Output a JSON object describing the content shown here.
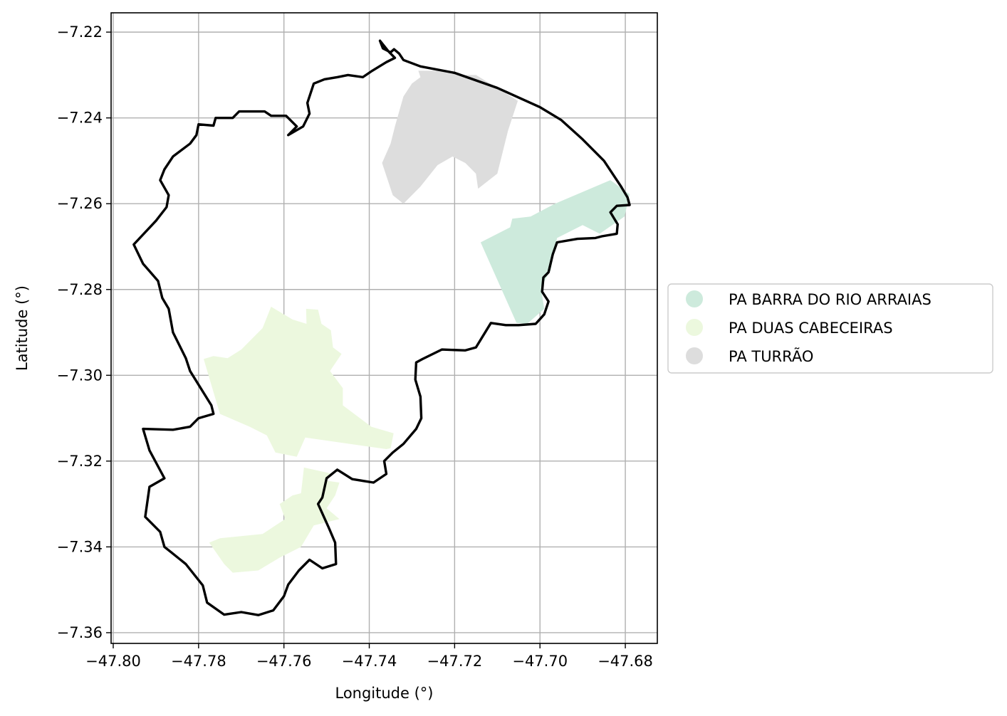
{
  "chart_data": {
    "type": "map",
    "xlabel": "Longitude (°)",
    "ylabel": "Latitude (°)",
    "xlim": [
      -47.8005,
      -47.6725
    ],
    "ylim": [
      -7.3625,
      -7.2155
    ],
    "grid": true,
    "legend_position": "right",
    "x_ticks": [
      {
        "value": -47.8,
        "label": "−47.80"
      },
      {
        "value": -47.78,
        "label": "−47.78"
      },
      {
        "value": -47.76,
        "label": "−47.76"
      },
      {
        "value": -47.74,
        "label": "−47.74"
      },
      {
        "value": -47.72,
        "label": "−47.72"
      },
      {
        "value": -47.7,
        "label": "−47.70"
      },
      {
        "value": -47.68,
        "label": "−47.68"
      }
    ],
    "y_ticks": [
      {
        "value": -7.22,
        "label": "−7.22"
      },
      {
        "value": -7.24,
        "label": "−7.24"
      },
      {
        "value": -7.26,
        "label": "−7.26"
      },
      {
        "value": -7.28,
        "label": "−7.28"
      },
      {
        "value": -7.3,
        "label": "−7.30"
      },
      {
        "value": -7.32,
        "label": "−7.32"
      },
      {
        "value": -7.34,
        "label": "−7.34"
      },
      {
        "value": -7.36,
        "label": "−7.36"
      }
    ],
    "series": [
      {
        "name": "PA BARRA DO RIO ARRAIAS",
        "color": "#cdeadc",
        "polygons": [
          [
            [
              -47.7139,
              -7.269
            ],
            [
              -47.707,
              -7.2655
            ],
            [
              -47.7065,
              -7.2635
            ],
            [
              -47.7022,
              -7.263
            ],
            [
              -47.6965,
              -7.26
            ],
            [
              -47.6835,
              -7.2545
            ],
            [
              -47.679,
              -7.2578
            ],
            [
              -47.6802,
              -7.263
            ],
            [
              -47.686,
              -7.267
            ],
            [
              -47.69,
              -7.265
            ],
            [
              -47.696,
              -7.268
            ],
            [
              -47.6975,
              -7.2755
            ],
            [
              -47.6998,
              -7.2795
            ],
            [
              -47.699,
              -7.2845
            ],
            [
              -47.703,
              -7.288
            ],
            [
              -47.7055,
              -7.2878
            ]
          ]
        ]
      },
      {
        "name": "PA DUAS CABECEIRAS",
        "color": "#ecf8de",
        "polygons": [
          [
            [
              -47.7788,
              -7.2962
            ],
            [
              -47.7765,
              -7.2955
            ],
            [
              -47.7732,
              -7.296
            ],
            [
              -47.77,
              -7.294
            ],
            [
              -47.765,
              -7.289
            ],
            [
              -47.763,
              -7.284
            ],
            [
              -47.758,
              -7.287
            ],
            [
              -47.7547,
              -7.288
            ],
            [
              -47.7548,
              -7.2845
            ],
            [
              -47.752,
              -7.2847
            ],
            [
              -47.7512,
              -7.288
            ],
            [
              -47.749,
              -7.2895
            ],
            [
              -47.7485,
              -7.2935
            ],
            [
              -47.7465,
              -7.295
            ],
            [
              -47.7492,
              -7.299
            ],
            [
              -47.7462,
              -7.303
            ],
            [
              -47.7462,
              -7.307
            ],
            [
              -47.7395,
              -7.312
            ],
            [
              -47.7343,
              -7.3135
            ],
            [
              -47.735,
              -7.317
            ],
            [
              -47.736,
              -7.3172
            ],
            [
              -47.755,
              -7.3145
            ],
            [
              -47.757,
              -7.319
            ],
            [
              -47.762,
              -7.318
            ],
            [
              -47.764,
              -7.314
            ],
            [
              -47.768,
              -7.312
            ],
            [
              -47.775,
              -7.309
            ]
          ],
          [
            [
              -47.775,
              -7.338
            ],
            [
              -47.765,
              -7.337
            ],
            [
              -47.7597,
              -7.3335
            ],
            [
              -47.761,
              -7.33
            ],
            [
              -47.758,
              -7.328
            ],
            [
              -47.756,
              -7.3275
            ],
            [
              -47.7553,
              -7.3215
            ],
            [
              -47.7485,
              -7.323
            ],
            [
              -47.7505,
              -7.3245
            ],
            [
              -47.747,
              -7.325
            ],
            [
              -47.748,
              -7.328
            ],
            [
              -47.75,
              -7.331
            ],
            [
              -47.747,
              -7.3335
            ],
            [
              -47.753,
              -7.335
            ],
            [
              -47.756,
              -7.34
            ],
            [
              -47.761,
              -7.3425
            ],
            [
              -47.766,
              -7.3455
            ],
            [
              -47.772,
              -7.346
            ],
            [
              -47.774,
              -7.344
            ],
            [
              -47.7775,
              -7.339
            ]
          ]
        ]
      },
      {
        "name": "PA TURRÃO",
        "color": "#dddddd",
        "polygons": [
          [
            [
              -47.7285,
              -7.229
            ],
            [
              -47.728,
              -7.2305
            ],
            [
              -47.73,
              -7.232
            ],
            [
              -47.732,
              -7.235
            ],
            [
              -47.734,
              -7.242
            ],
            [
              -47.735,
              -7.246
            ],
            [
              -47.737,
              -7.2505
            ],
            [
              -47.7345,
              -7.258
            ],
            [
              -47.732,
              -7.26
            ],
            [
              -47.73,
              -7.258
            ],
            [
              -47.728,
              -7.256
            ],
            [
              -47.724,
              -7.251
            ],
            [
              -47.7205,
              -7.249
            ],
            [
              -47.7175,
              -7.2505
            ],
            [
              -47.715,
              -7.253
            ],
            [
              -47.7145,
              -7.2565
            ],
            [
              -47.71,
              -7.253
            ],
            [
              -47.7075,
              -7.243
            ],
            [
              -47.7052,
              -7.236
            ],
            [
              -47.71,
              -7.233
            ],
            [
              -47.715,
              -7.23
            ],
            [
              -47.719,
              -7.23
            ],
            [
              -47.724,
              -7.229
            ]
          ]
        ]
      }
    ],
    "outline": {
      "color": "#000000",
      "points": [
        [
          -47.7375,
          -7.222
        ],
        [
          -47.7368,
          -7.2238
        ],
        [
          -47.735,
          -7.2247
        ],
        [
          -47.7342,
          -7.224
        ],
        [
          -47.733,
          -7.225
        ],
        [
          -47.732,
          -7.2265
        ],
        [
          -47.728,
          -7.228
        ],
        [
          -47.72,
          -7.2295
        ],
        [
          -47.71,
          -7.233
        ],
        [
          -47.7,
          -7.2375
        ],
        [
          -47.695,
          -7.2405
        ],
        [
          -47.69,
          -7.245
        ],
        [
          -47.685,
          -7.25
        ],
        [
          -47.681,
          -7.256
        ],
        [
          -47.6795,
          -7.2585
        ],
        [
          -47.679,
          -7.2603
        ],
        [
          -47.682,
          -7.2605
        ],
        [
          -47.6835,
          -7.262
        ],
        [
          -47.6818,
          -7.2648
        ],
        [
          -47.682,
          -7.267
        ],
        [
          -47.6855,
          -7.2676
        ],
        [
          -47.687,
          -7.268
        ],
        [
          -47.6912,
          -7.2682
        ],
        [
          -47.696,
          -7.269
        ],
        [
          -47.697,
          -7.2718
        ],
        [
          -47.698,
          -7.276
        ],
        [
          -47.6992,
          -7.2772
        ],
        [
          -47.6995,
          -7.2805
        ],
        [
          -47.698,
          -7.2828
        ],
        [
          -47.699,
          -7.2858
        ],
        [
          -47.701,
          -7.288
        ],
        [
          -47.705,
          -7.2883
        ],
        [
          -47.708,
          -7.2883
        ],
        [
          -47.7115,
          -7.2878
        ],
        [
          -47.715,
          -7.2935
        ],
        [
          -47.7175,
          -7.2942
        ],
        [
          -47.723,
          -7.294
        ],
        [
          -47.7275,
          -7.2962
        ],
        [
          -47.729,
          -7.297
        ],
        [
          -47.7292,
          -7.301
        ],
        [
          -47.728,
          -7.305
        ],
        [
          -47.7278,
          -7.31
        ],
        [
          -47.729,
          -7.3125
        ],
        [
          -47.732,
          -7.316
        ],
        [
          -47.7345,
          -7.318
        ],
        [
          -47.7365,
          -7.32
        ],
        [
          -47.736,
          -7.323
        ],
        [
          -47.739,
          -7.325
        ],
        [
          -47.744,
          -7.3242
        ],
        [
          -47.7475,
          -7.322
        ],
        [
          -47.75,
          -7.324
        ],
        [
          -47.751,
          -7.3285
        ],
        [
          -47.752,
          -7.33
        ],
        [
          -47.7495,
          -7.3355
        ],
        [
          -47.748,
          -7.339
        ],
        [
          -47.7478,
          -7.344
        ],
        [
          -47.751,
          -7.345
        ],
        [
          -47.754,
          -7.343
        ],
        [
          -47.7565,
          -7.3455
        ],
        [
          -47.759,
          -7.3488
        ],
        [
          -47.76,
          -7.3515
        ],
        [
          -47.7625,
          -7.3548
        ],
        [
          -47.766,
          -7.3559
        ],
        [
          -47.77,
          -7.3552
        ],
        [
          -47.774,
          -7.3558
        ],
        [
          -47.778,
          -7.353
        ],
        [
          -47.779,
          -7.349
        ],
        [
          -47.783,
          -7.344
        ],
        [
          -47.7865,
          -7.3412
        ],
        [
          -47.788,
          -7.34
        ],
        [
          -47.789,
          -7.3365
        ],
        [
          -47.7925,
          -7.333
        ],
        [
          -47.7915,
          -7.326
        ],
        [
          -47.788,
          -7.324
        ],
        [
          -47.7915,
          -7.3175
        ],
        [
          -47.793,
          -7.3125
        ],
        [
          -47.786,
          -7.3127
        ],
        [
          -47.782,
          -7.312
        ],
        [
          -47.78,
          -7.31
        ],
        [
          -47.7765,
          -7.309
        ],
        [
          -47.777,
          -7.307
        ],
        [
          -47.782,
          -7.299
        ],
        [
          -47.783,
          -7.296
        ],
        [
          -47.786,
          -7.29
        ],
        [
          -47.787,
          -7.2845
        ],
        [
          -47.7885,
          -7.282
        ],
        [
          -47.7895,
          -7.278
        ],
        [
          -47.793,
          -7.274
        ],
        [
          -47.7952,
          -7.2695
        ],
        [
          -47.79,
          -7.264
        ],
        [
          -47.7875,
          -7.2608
        ],
        [
          -47.787,
          -7.258
        ],
        [
          -47.789,
          -7.2545
        ],
        [
          -47.788,
          -7.252
        ],
        [
          -47.786,
          -7.249
        ],
        [
          -47.782,
          -7.246
        ],
        [
          -47.7805,
          -7.244
        ],
        [
          -47.78,
          -7.2415
        ],
        [
          -47.7765,
          -7.2418
        ],
        [
          -47.776,
          -7.24
        ],
        [
          -47.772,
          -7.24
        ],
        [
          -47.7705,
          -7.2385
        ],
        [
          -47.768,
          -7.2385
        ],
        [
          -47.7645,
          -7.2385
        ],
        [
          -47.763,
          -7.2395
        ],
        [
          -47.7595,
          -7.2395
        ],
        [
          -47.757,
          -7.242
        ],
        [
          -47.759,
          -7.244
        ],
        [
          -47.7555,
          -7.242
        ],
        [
          -47.754,
          -7.239
        ],
        [
          -47.7545,
          -7.2365
        ],
        [
          -47.753,
          -7.232
        ],
        [
          -47.7505,
          -7.231
        ],
        [
          -47.7475,
          -7.2305
        ],
        [
          -47.745,
          -7.23
        ],
        [
          -47.7415,
          -7.2305
        ],
        [
          -47.7393,
          -7.229
        ],
        [
          -47.736,
          -7.227
        ],
        [
          -47.734,
          -7.226
        ],
        [
          -47.7355,
          -7.2245
        ],
        [
          -47.7375,
          -7.222
        ]
      ]
    }
  }
}
